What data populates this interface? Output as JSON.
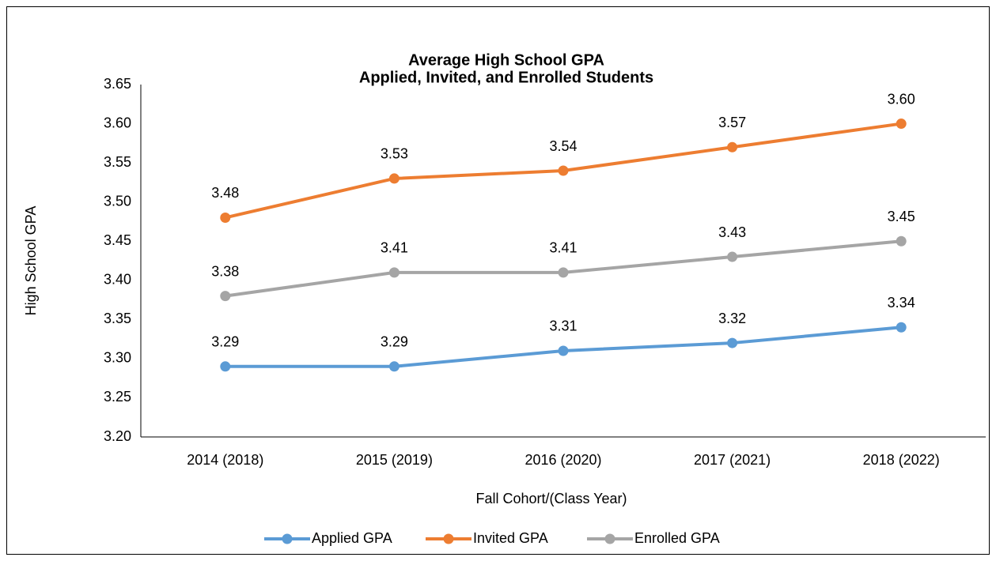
{
  "chart_data": {
    "type": "line",
    "title": "Average High School GPA",
    "subtitle": "Applied, Invited, and Enrolled Students",
    "x_label": "Fall Cohort/(Class Year)",
    "y_label": "High School GPA",
    "categories": [
      "2014 (2018)",
      "2015 (2019)",
      "2016 (2020)",
      "2017 (2021)",
      "2018 (2022)"
    ],
    "series": [
      {
        "name": "Applied GPA",
        "color": "#5b9bd5",
        "values": [
          3.29,
          3.29,
          3.31,
          3.32,
          3.34
        ]
      },
      {
        "name": "Invited GPA",
        "color": "#ed7d31",
        "values": [
          3.48,
          3.53,
          3.54,
          3.57,
          3.6
        ],
        "value_labels": [
          "3.48",
          "3.53",
          "3.54",
          "3.57",
          "3.60"
        ]
      },
      {
        "name": "Enrolled GPA",
        "color": "#a5a5a5",
        "values": [
          3.38,
          3.41,
          3.41,
          3.43,
          3.45
        ]
      }
    ],
    "ylim": [
      3.2,
      3.65
    ],
    "yticks": [
      {
        "value": 3.2,
        "label": "3.20"
      },
      3.25,
      {
        "value": 3.3,
        "label": "3.30"
      },
      3.35,
      {
        "value": 3.4,
        "label": "3.40"
      },
      3.45,
      {
        "value": 3.5,
        "label": "3.50"
      },
      3.55,
      {
        "value": 3.6,
        "label": "3.60"
      },
      3.65
    ],
    "grid": false,
    "legend": "bottom"
  }
}
